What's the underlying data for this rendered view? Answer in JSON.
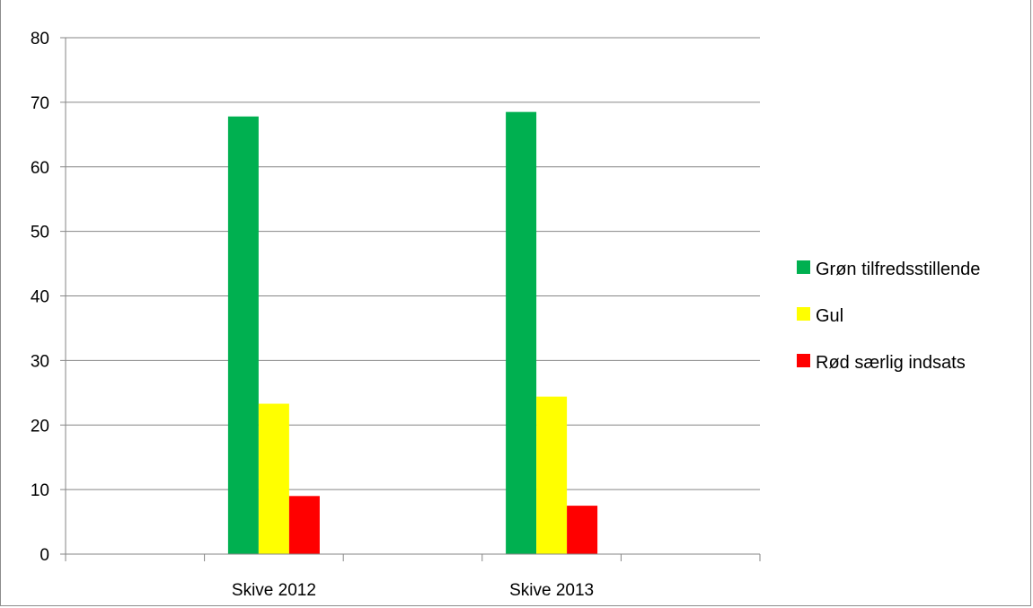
{
  "chart_data": {
    "type": "bar",
    "categories": [
      "Skive 2012",
      "Skive 2013"
    ],
    "series": [
      {
        "name": "Grøn tilfredsstillende",
        "values": [
          67.8,
          68.5
        ],
        "color": "#00b050"
      },
      {
        "name": "Gul",
        "values": [
          23.3,
          24.4
        ],
        "color": "#ffff00"
      },
      {
        "name": "Rød særlig indsats",
        "values": [
          9.0,
          7.5
        ],
        "color": "#ff0000"
      }
    ],
    "title": "",
    "xlabel": "",
    "ylabel": "",
    "ylim": [
      0,
      80
    ],
    "yticks": [
      0,
      10,
      20,
      30,
      40,
      50,
      60,
      70,
      80
    ],
    "grid": true,
    "legend_position": "right"
  }
}
